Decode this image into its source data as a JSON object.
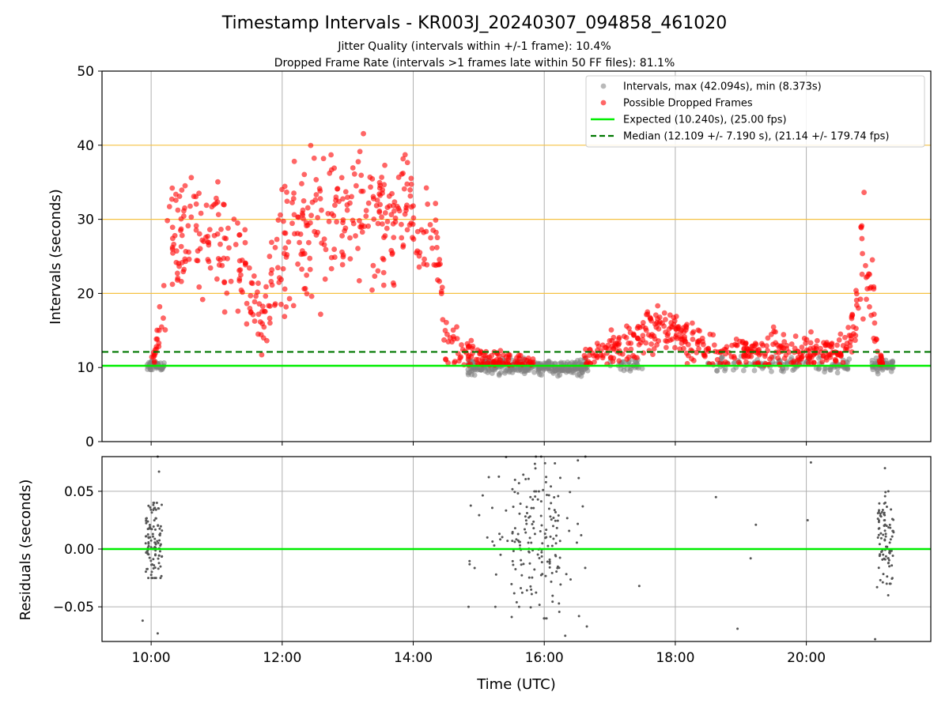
{
  "chart_data": {
    "type": "scatter",
    "title": "Timestamp Intervals - KR003J_20240307_094858_461020",
    "subtitle_lines": [
      "Jitter Quality (intervals within +/-1 frame): 10.4%",
      "Dropped Frame Rate (intervals >1 frames late within 50 FF files): 81.1%"
    ],
    "xlabel": "Time (UTC)",
    "x_ticks": [
      "10:00",
      "12:00",
      "14:00",
      "16:00",
      "18:00",
      "20:00"
    ],
    "colors": {
      "intervals": "#808080",
      "dropped": "#ff0000",
      "expected": "#00ee00",
      "median": "#007700",
      "threshold_lines": "#f5c242",
      "grid": "#b0b0b0",
      "residuals": "#555555"
    },
    "top_panel": {
      "ylabel": "Intervals (seconds)",
      "ylim": [
        0,
        50
      ],
      "y_ticks": [
        "0",
        "10",
        "20",
        "30",
        "40",
        "50"
      ],
      "threshold_lines_y": [
        20,
        30,
        40
      ],
      "expected_y": 10.24,
      "median_y": 12.109,
      "legend": {
        "placement": "top-right",
        "entries": [
          "Intervals, max (42.094s), min (8.373s)",
          "Possible Dropped Frames",
          "Expected (10.240s), (25.00 fps)",
          "Median (12.109 +/- 7.190 s), (21.14 +/- 179.74 fps)"
        ]
      },
      "series": [
        {
          "role": "intervals",
          "segments": [
            {
              "x_range": [
                "09:55",
                "10:12"
              ],
              "y_center": 10.2,
              "spread": 0.3,
              "count": 50
            },
            {
              "x_range": [
                "14:50",
                "16:40"
              ],
              "y_center": 10.1,
              "spread": 0.5,
              "count": 320
            },
            {
              "x_range": [
                "17:00",
                "17:30"
              ],
              "y_center": 10.4,
              "spread": 0.4,
              "count": 30
            },
            {
              "x_range": [
                "18:30",
                "20:40"
              ],
              "y_center": 10.3,
              "spread": 0.5,
              "count": 120
            },
            {
              "x_range": [
                "21:00",
                "21:20"
              ],
              "y_center": 10.2,
              "spread": 0.5,
              "count": 50
            }
          ]
        },
        {
          "role": "dropped",
          "envelope": [
            [
              "10:00",
              10.5,
              0.3
            ],
            [
              "10:05",
              13,
              1
            ],
            [
              "10:10",
              19,
              2.5
            ],
            [
              "10:15",
              26,
              4
            ],
            [
              "10:30",
              28,
              4
            ],
            [
              "11:00",
              28,
              4
            ],
            [
              "11:15",
              26,
              4
            ],
            [
              "11:30",
              20,
              3
            ],
            [
              "11:40",
              17,
              3
            ],
            [
              "11:50",
              22,
              3
            ],
            [
              "12:00",
              27,
              5
            ],
            [
              "12:30",
              30,
              5
            ],
            [
              "13:00",
              32,
              5
            ],
            [
              "13:30",
              31,
              5
            ],
            [
              "14:00",
              30,
              4
            ],
            [
              "14:20",
              28,
              3
            ],
            [
              "14:30",
              13,
              1.5
            ],
            [
              "14:45",
              12.5,
              1.2
            ],
            [
              "15:00",
              11.3,
              0.7
            ],
            [
              "15:30",
              10.8,
              0.5
            ],
            [
              "15:45",
              10.7,
              0.4
            ],
            [
              "15:50",
              10.7,
              0.4
            ],
            [
              "16:35",
              11,
              0.6
            ],
            [
              "17:00",
              12.5,
              1.2
            ],
            [
              "17:30",
              14.5,
              1.5
            ],
            [
              "17:45",
              15.5,
              1.5
            ],
            [
              "18:00",
              14.5,
              1.5
            ],
            [
              "18:30",
              12.5,
              1.2
            ],
            [
              "19:00",
              12,
              1
            ],
            [
              "19:30",
              12.5,
              1.2
            ],
            [
              "20:00",
              11.8,
              1
            ],
            [
              "20:30",
              12,
              1
            ],
            [
              "20:40",
              14,
              1.5
            ],
            [
              "20:45",
              17,
              2.5
            ],
            [
              "20:50",
              24,
              4
            ],
            [
              "21:00",
              20,
              3
            ],
            [
              "21:05",
              12,
              1
            ],
            [
              "21:10",
              10.5,
              0.4
            ]
          ],
          "gaps": [
            [
              "15:50",
              "16:35"
            ]
          ],
          "count": 1100
        }
      ]
    },
    "bottom_panel": {
      "ylabel": "Residuals (seconds)",
      "ylim": [
        -0.08,
        0.08
      ],
      "y_ticks": [
        "-0.05",
        "0.00",
        "0.05"
      ],
      "zero_line_y": 0.0,
      "clusters": [
        {
          "x_range": [
            "09:55",
            "10:10"
          ],
          "y_range": [
            -0.025,
            0.04
          ],
          "count": 110
        },
        {
          "x_range": [
            "15:30",
            "16:15"
          ],
          "y_range": [
            -0.06,
            0.08
          ],
          "count": 130
        },
        {
          "x_range": [
            "14:50",
            "16:40"
          ],
          "y_range": [
            -0.05,
            0.08
          ],
          "count": 60
        },
        {
          "x_range": [
            "21:05",
            "21:20"
          ],
          "y_range": [
            -0.03,
            0.05
          ],
          "count": 90
        }
      ],
      "outliers": [
        [
          9.87,
          -0.062
        ],
        [
          10.1,
          -0.073
        ],
        [
          10.1,
          0.08
        ],
        [
          10.12,
          0.067
        ],
        [
          16.32,
          -0.075
        ],
        [
          16.53,
          -0.058
        ],
        [
          16.65,
          -0.067
        ],
        [
          17.45,
          -0.032
        ],
        [
          18.62,
          0.045
        ],
        [
          18.95,
          -0.069
        ],
        [
          19.15,
          -0.008
        ],
        [
          19.23,
          0.021
        ],
        [
          20.02,
          0.025
        ],
        [
          20.07,
          0.075
        ],
        [
          21.05,
          -0.078
        ],
        [
          21.08,
          -0.033
        ],
        [
          21.25,
          -0.04
        ],
        [
          21.2,
          0.07
        ]
      ]
    }
  }
}
